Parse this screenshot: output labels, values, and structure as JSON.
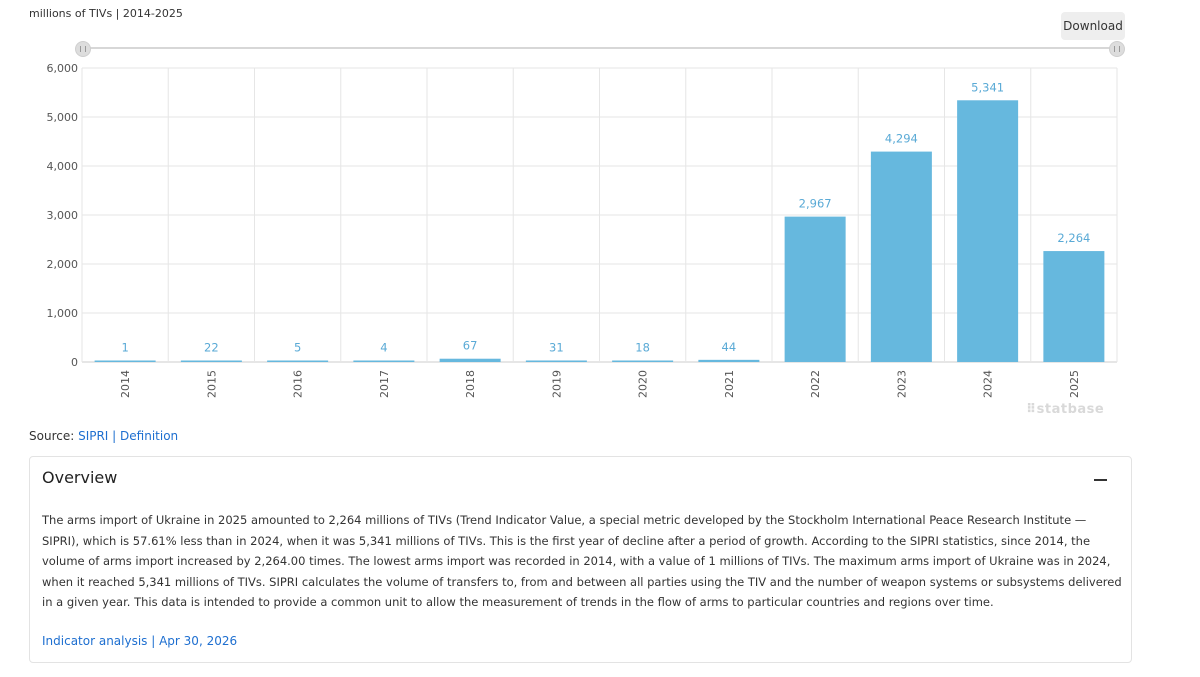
{
  "header": {
    "unit_label": "millions of TIVs | 2014-2025",
    "download_label": "Download"
  },
  "chart_data": {
    "type": "bar",
    "categories": [
      "2014",
      "2015",
      "2016",
      "2017",
      "2018",
      "2019",
      "2020",
      "2021",
      "2022",
      "2023",
      "2024",
      "2025"
    ],
    "values": [
      1,
      22,
      5,
      4,
      67,
      31,
      18,
      44,
      2967,
      4294,
      5341,
      2264
    ],
    "data_labels": [
      "1",
      "22",
      "5",
      "4",
      "67",
      "31",
      "18",
      "44",
      "2,967",
      "4,294",
      "5,341",
      "2,264"
    ],
    "yticks": [
      "0",
      "1,000",
      "2,000",
      "3,000",
      "4,000",
      "5,000",
      "6,000"
    ],
    "ylim": [
      0,
      6000
    ],
    "grid": true,
    "title": "",
    "xlabel": "",
    "ylabel": "",
    "bar_color": "#66b8de",
    "label_color": "#5aaad6"
  },
  "watermark": "⠿statbase",
  "source": {
    "prefix": "Source: ",
    "link_sipri": "SIPRI",
    "separator": " | ",
    "link_definition": "Definition"
  },
  "overview": {
    "title": "Overview",
    "text": "The arms import of Ukraine in 2025 amounted to 2,264 millions of TIVs (Trend Indicator Value, a special metric developed by the Stockholm International Peace Research Institute — SIPRI), which is  57.61% less than in 2024, when it was  5,341 millions of TIVs. This is the first year of decline after a period of growth. According to the SIPRI statistics, since 2014, the volume of arms import increased by 2,264.00 times. The lowest arms import was recorded in 2014, with a value of 1 millions of TIVs. The maximum arms import of Ukraine was in 2024, when it reached 5,341 millions of TIVs. SIPRI calculates the volume of transfers to, from and between all parties using the TIV and the number of weapon systems or subsystems delivered in a given year. This data is intended to provide a common unit to allow the measurement of trends in the flow of arms to particular countries and regions over time.",
    "footer_link": "Indicator analysis | Apr 30, 2026"
  }
}
